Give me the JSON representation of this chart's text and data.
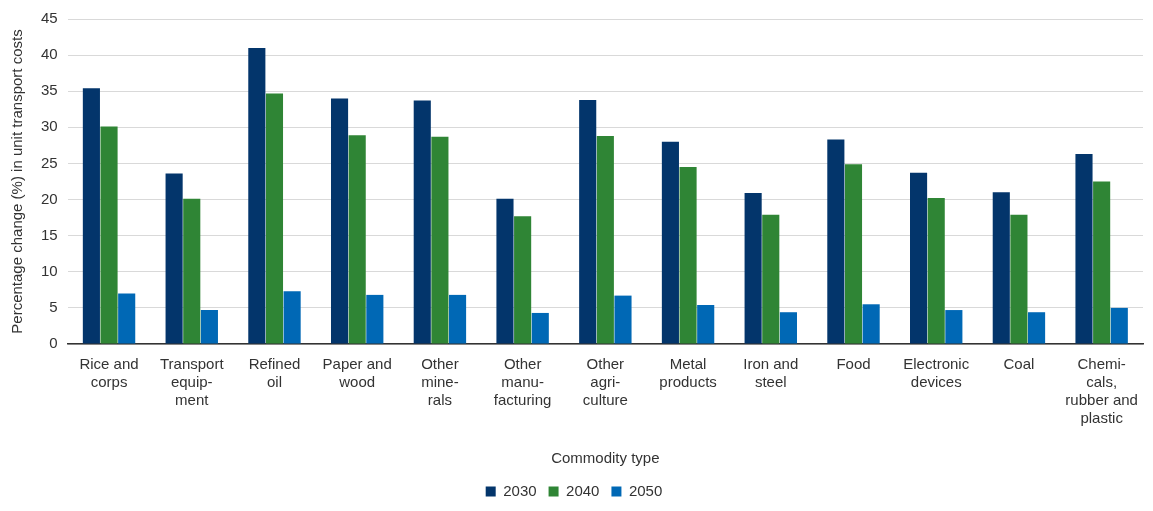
{
  "chart_data": {
    "type": "bar",
    "xlabel": "Commodity type",
    "ylabel": "Percentage change (%) in unit transport costs",
    "categories": [
      "Rice and\ncorps",
      "Transport\nequip-\nment",
      "Refined\noil",
      "Paper and\nwood",
      "Other\nmine-\nrals",
      "Other\nmanu-\nfacturing",
      "Other\nagri-\nculture",
      "Metal\nproducts",
      "Iron and\nsteel",
      "Food",
      "Electronic\ndevices",
      "Coal",
      "Chemi-\ncals,\nrubber and\nplastic"
    ],
    "series": [
      {
        "name": "2030",
        "color": "#03356b",
        "values": [
          35.4,
          23.6,
          41.0,
          34.0,
          33.7,
          20.1,
          33.8,
          28.0,
          20.9,
          28.3,
          23.7,
          21.0,
          26.3
        ]
      },
      {
        "name": "2040",
        "color": "#2f8535",
        "values": [
          30.1,
          20.1,
          34.7,
          28.9,
          28.7,
          17.7,
          28.8,
          24.5,
          17.9,
          24.9,
          20.2,
          17.9,
          22.5
        ]
      },
      {
        "name": "2050",
        "color": "#0068b5",
        "values": [
          7.0,
          4.7,
          7.3,
          6.8,
          6.8,
          4.3,
          6.7,
          5.4,
          4.4,
          5.5,
          4.7,
          4.4,
          5.0
        ]
      }
    ],
    "ylim": [
      0,
      45
    ],
    "yticks": [
      0,
      5,
      10,
      15,
      20,
      25,
      30,
      35,
      40,
      45
    ],
    "grid": "y",
    "legend": "bottom"
  }
}
